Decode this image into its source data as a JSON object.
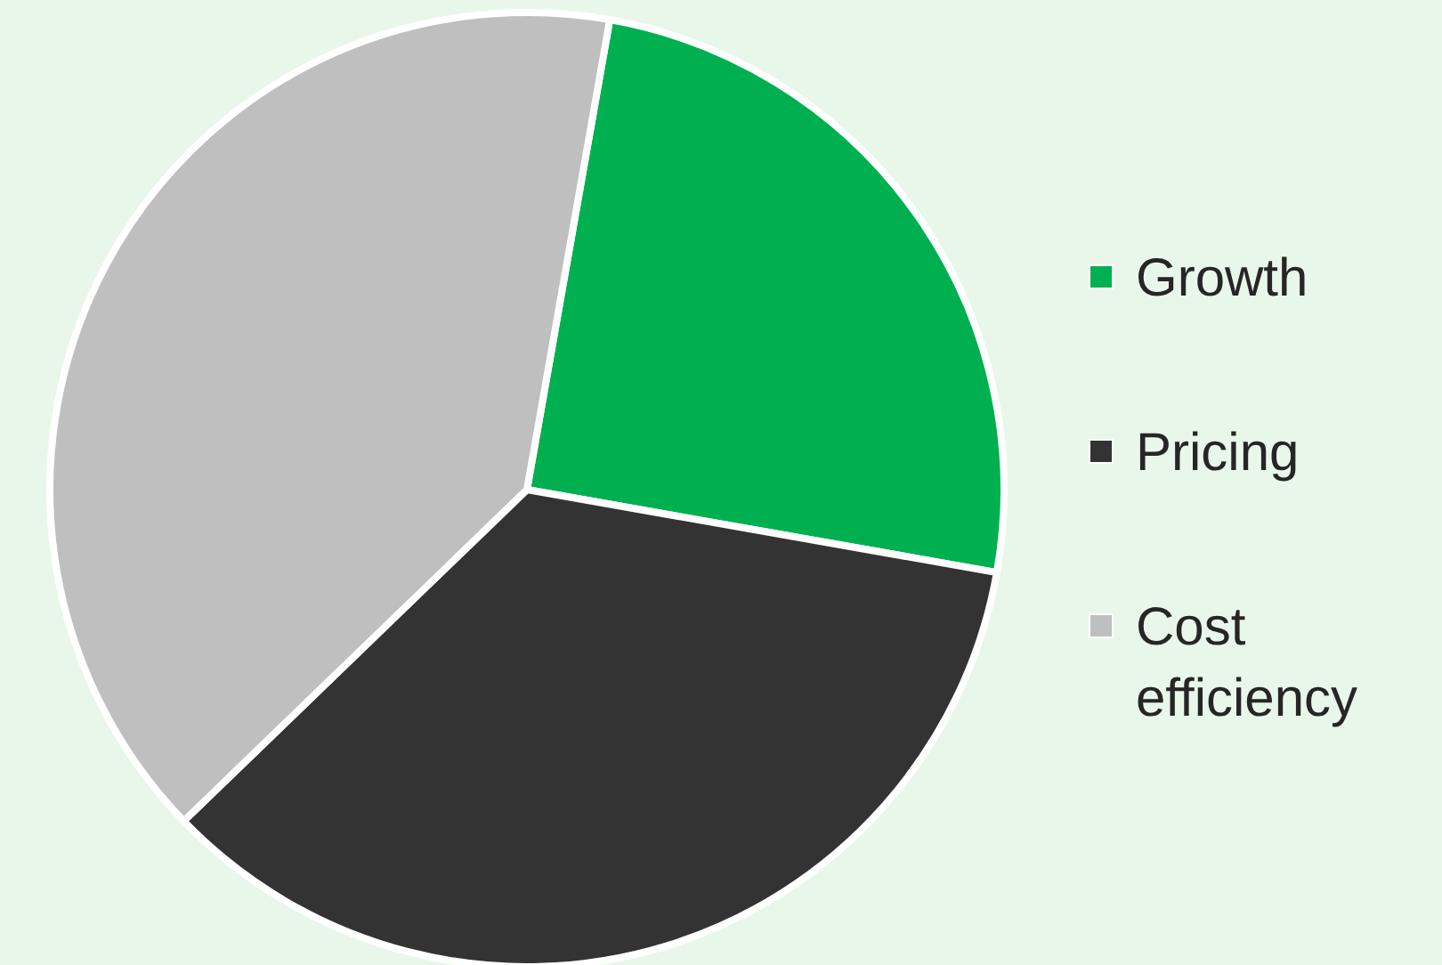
{
  "chart_data": {
    "type": "pie",
    "categories": [
      "Growth",
      "Pricing",
      "Cost efficiency"
    ],
    "values": [
      25,
      35,
      40
    ],
    "colors": [
      "#00b050",
      "#333333",
      "#bfbfbf"
    ],
    "legend": "right"
  }
}
